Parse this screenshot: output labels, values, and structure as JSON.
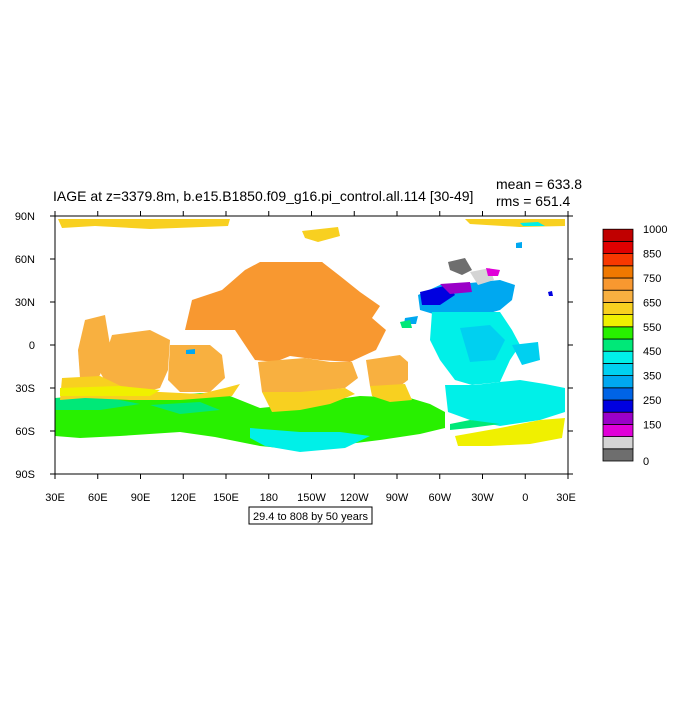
{
  "plot": {
    "title": "IAGE at z=3379.8m, b.e15.B1850.f09_g16.pi_control.all.114 [30-49]",
    "stats": {
      "mean": "mean = 633.8",
      "rms": "rms = 651.4"
    },
    "contour_info": "29.4 to 808 by 50 years",
    "x_ticks": [
      "30E",
      "60E",
      "90E",
      "120E",
      "150E",
      "180",
      "150W",
      "120W",
      "90W",
      "60W",
      "30W",
      "0",
      "30E"
    ],
    "y_ticks": [
      "90N",
      "60N",
      "30N",
      "0",
      "30S",
      "60S",
      "90S"
    ]
  },
  "colorbar": {
    "colors": [
      "#6e6e6e",
      "#d4d4d4",
      "#e000d8",
      "#9a00c8",
      "#0000e0",
      "#0064e6",
      "#00a8f0",
      "#00d0f0",
      "#00f0e8",
      "#00e878",
      "#28f000",
      "#f0f000",
      "#f8d020",
      "#f8b040",
      "#f89830",
      "#f07800",
      "#f83800",
      "#e00000",
      "#c00000"
    ],
    "labels": [
      {
        "level": 0,
        "text": "0"
      },
      {
        "level": 3,
        "text": "150"
      },
      {
        "level": 5,
        "text": "250"
      },
      {
        "level": 7,
        "text": "350"
      },
      {
        "level": 9,
        "text": "450"
      },
      {
        "level": 11,
        "text": "550"
      },
      {
        "level": 13,
        "text": "650"
      },
      {
        "level": 15,
        "text": "750"
      },
      {
        "level": 17,
        "text": "850"
      },
      {
        "level": 19,
        "text": "1000"
      }
    ]
  }
}
